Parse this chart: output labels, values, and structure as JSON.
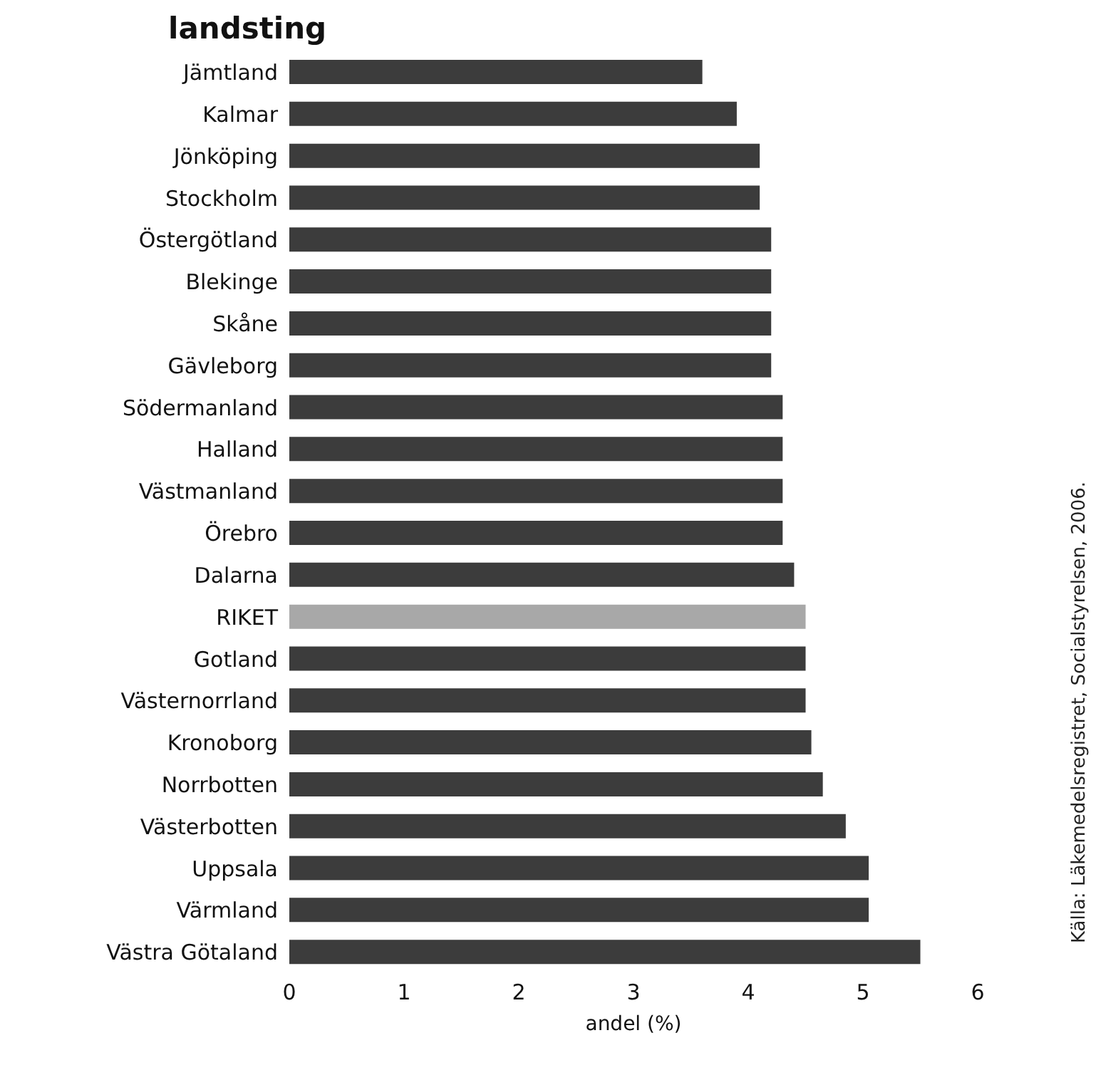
{
  "chart_data": {
    "type": "bar",
    "orientation": "horizontal",
    "title": "landsting",
    "xlabel": "andel (%)",
    "categories": [
      "Jämtland",
      "Kalmar",
      "Jönköping",
      "Stockholm",
      "Östergötland",
      "Blekinge",
      "Skåne",
      "Gävleborg",
      "Södermanland",
      "Halland",
      "Västmanland",
      "Örebro",
      "Dalarna",
      "RIKET",
      "Gotland",
      "Västernorrland",
      "Kronoborg",
      "Norrbotten",
      "Västerbotten",
      "Uppsala",
      "Värmland",
      "Västra Götaland"
    ],
    "values": [
      3.6,
      3.9,
      4.1,
      4.1,
      4.2,
      4.2,
      4.2,
      4.2,
      4.3,
      4.3,
      4.3,
      4.3,
      4.4,
      4.5,
      4.5,
      4.5,
      4.55,
      4.65,
      4.85,
      5.05,
      5.05,
      5.5
    ],
    "colors": [
      "#3c3c3c",
      "#3c3c3c",
      "#3c3c3c",
      "#3c3c3c",
      "#3c3c3c",
      "#3c3c3c",
      "#3c3c3c",
      "#3c3c3c",
      "#3c3c3c",
      "#3c3c3c",
      "#3c3c3c",
      "#3c3c3c",
      "#3c3c3c",
      "#a8a8a8",
      "#3c3c3c",
      "#3c3c3c",
      "#3c3c3c",
      "#3c3c3c",
      "#3c3c3c",
      "#3c3c3c",
      "#3c3c3c",
      "#3c3c3c"
    ],
    "xlim": [
      0,
      6
    ],
    "xticks": [
      0,
      1,
      2,
      3,
      4,
      5,
      6
    ],
    "grid": false,
    "legend": false,
    "annotations": [
      "Källa: Läkemedelsregistret, Socialstyrelsen, 2006."
    ]
  }
}
